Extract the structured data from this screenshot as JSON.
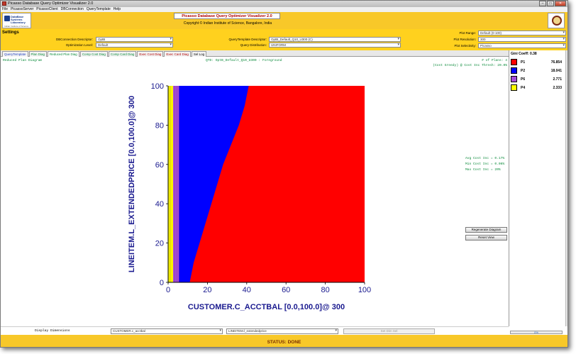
{
  "window": {
    "title": "Picasso Database Query Optimizer Visualizer 2.0"
  },
  "menu": [
    "File",
    "PicassoServer",
    "PicassoClient",
    "DBConnection",
    "QueryTemplate",
    "Help"
  ],
  "header": {
    "logo_text": "DataBase Systems Laboratory",
    "logo_sub": "Indian Institute of Science",
    "banner": "Picasso Database Query Optimizer Visualizer 2.0",
    "copyright": "Copyright © Indian Institute of Science, Bangalore, India"
  },
  "settings": {
    "heading": "Settings",
    "db_connection_label": "DBConnection Descriptor:",
    "db_connection_value": "OptB",
    "opt_level_label": "Optimization Level:",
    "opt_level_value": "Default",
    "query_template_label": "QueryTemplate Descriptor:",
    "query_template_value": "OptB_Default_Q10_U300     (C)",
    "query_dist_label": "Query Distribution:",
    "query_dist_value": "UNIFORM",
    "plot_range_label": "Plot Range:",
    "plot_range_value": "Default (0-100)",
    "plot_res_label": "Plot Resolution:",
    "plot_res_value": "300",
    "plot_sel_label": "Plot Selectivity:",
    "plot_sel_value": "Picasso"
  },
  "tabs": [
    {
      "label": "QueryTemplate",
      "color": "#1f3fbf"
    },
    {
      "label": "Plan Diag",
      "color": "#0a8a3a"
    },
    {
      "label": "Reduced Plan Diag",
      "color": "#0a8a3a"
    },
    {
      "label": "Comp Cost Diag",
      "color": "#0a8a3a"
    },
    {
      "label": "Comp Card Diag",
      "color": "#0a8a3a"
    },
    {
      "label": "Exec Cost Diag",
      "color": "#b00000"
    },
    {
      "label": "Exec Card Diag",
      "color": "#b00000"
    },
    {
      "label": "Sel Log",
      "color": "#000000"
    }
  ],
  "plot": {
    "diagram_name": "Reduced Plan Diagram",
    "qti": "QTD: OptB_Default_Q10_U300 : Foreground",
    "num_plans": "# of Plans: 4",
    "cost_greedy": "(Cost Greedy) @ Cost Inc Thresh: 20.0%",
    "avg_cost": "Avg Cost Inc = 0.17%",
    "min_cost": "Min Cost Inc = 0.06%",
    "max_cost": "Max Cost Inc = 20%",
    "regen_button": "Regenerate Diagram",
    "reset_button": "Reset View"
  },
  "chart_data": {
    "type": "heatmap",
    "xlabel": "CUSTOMER.C_ACCTBAL [0.0,100.0]@ 300",
    "ylabel": "LINEITEM.L_EXTENDEDPRICE [0.0,100.0]@ 300",
    "xlim": [
      0,
      100
    ],
    "ylim": [
      0,
      100
    ],
    "x_ticks": [
      "0",
      "20",
      "40",
      "60",
      "80",
      "100"
    ],
    "y_ticks": [
      "0",
      "20",
      "40",
      "60",
      "80",
      "100"
    ],
    "regions": [
      {
        "plan": "P4",
        "color": "#ffff00",
        "x_from": 0,
        "x_to": 2.5
      },
      {
        "plan": "P6",
        "color": "#a64dd9",
        "x_from": 2.5,
        "x_to": 5.5
      },
      {
        "plan": "P2",
        "color": "#0000ff",
        "boundary": [
          [
            11,
            0
          ],
          [
            13,
            10
          ],
          [
            16,
            20
          ],
          [
            19,
            30
          ],
          [
            22,
            40
          ],
          [
            25,
            50
          ],
          [
            28,
            60
          ],
          [
            32,
            70
          ],
          [
            36,
            80
          ],
          [
            39,
            90
          ],
          [
            41,
            100
          ]
        ]
      },
      {
        "plan": "P1",
        "color": "#ff0000"
      }
    ]
  },
  "legend": {
    "gini": "Gini Coeff: 0.38",
    "items": [
      {
        "name": "P1",
        "value": "76.854",
        "color": "#ff0000"
      },
      {
        "name": "P2",
        "value": "18.041",
        "color": "#0000ff"
      },
      {
        "name": "P6",
        "value": "2.771",
        "color": "#a64dd9"
      },
      {
        "name": "P4",
        "value": "2.333",
        "color": "#ffff00"
      }
    ]
  },
  "bottom": {
    "dims_label": "Display Dimensions",
    "dim1": "CUSTOMER.c_acctbal",
    "dim2": "LINEITEM.l_extendedprice",
    "set_btn": "Set Dim Sel",
    "progress": "0%",
    "progress_value": 0
  },
  "status": "STATUS: DONE"
}
